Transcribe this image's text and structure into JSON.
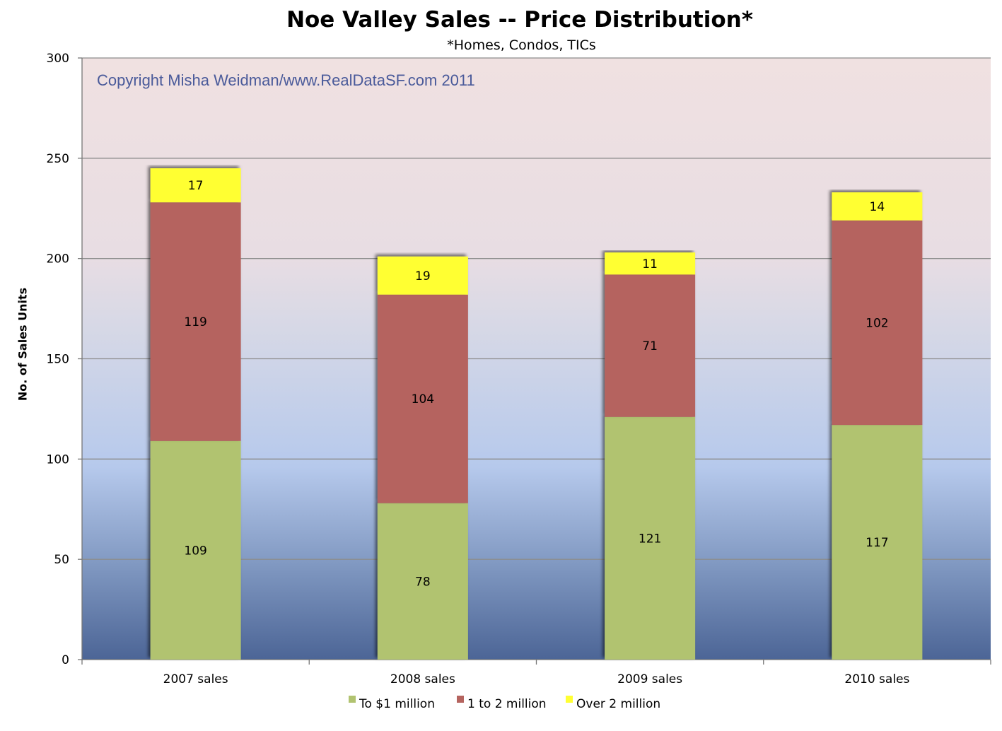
{
  "chart_data": {
    "type": "bar",
    "stacked": true,
    "title": "Noe Valley Sales -- Price Distribution*",
    "subtitle": "*Homes, Condos, TICs",
    "ylabel": "No. of Sales Units",
    "xlabel": "",
    "ylim": [
      0,
      300
    ],
    "yticks": [
      0,
      50,
      100,
      150,
      200,
      250,
      300
    ],
    "grid": true,
    "legend_position": "bottom",
    "annotation": "Copyright Misha Weidman/www.RealDataSF.com 2011",
    "categories": [
      "2007 sales",
      "2008 sales",
      "2009 sales",
      "2010 sales"
    ],
    "series": [
      {
        "name": "To $1 million",
        "color": "#b1c370",
        "values": [
          109,
          78,
          121,
          117
        ]
      },
      {
        "name": "1 to 2 million",
        "color": "#b5645f",
        "values": [
          119,
          104,
          71,
          102
        ]
      },
      {
        "name": "Over 2 million",
        "color": "#ffff33",
        "values": [
          17,
          19,
          11,
          14
        ]
      }
    ]
  }
}
